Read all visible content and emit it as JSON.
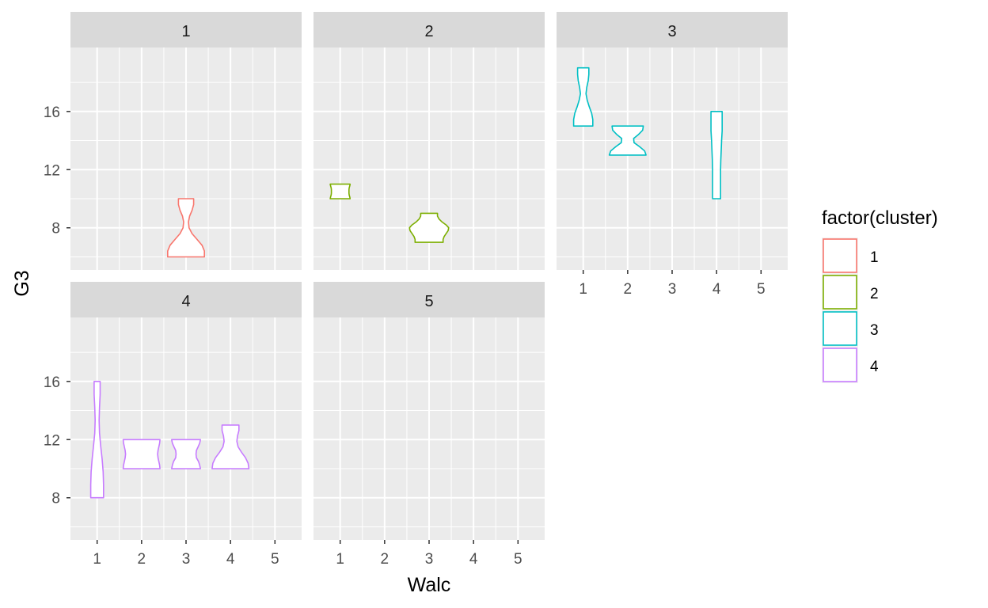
{
  "chart_data": {
    "type": "violin",
    "xlabel": "Walc",
    "ylabel": "G3",
    "x_ticks": [
      "1",
      "2",
      "3",
      "4",
      "5"
    ],
    "y_ticks": [
      "8",
      "12",
      "16"
    ],
    "xlim": [
      0.4,
      5.6
    ],
    "ylim": [
      5.1,
      20.4
    ],
    "grid": true,
    "legend": {
      "title": "factor(cluster)",
      "position": "right",
      "entries": [
        {
          "label": "1",
          "color": "#F8766D"
        },
        {
          "label": "2",
          "color": "#7CAE00"
        },
        {
          "label": "3",
          "color": "#00BFC4"
        },
        {
          "label": "4",
          "color": "#C77CFF"
        }
      ]
    },
    "panels": [
      {
        "label": "1",
        "violins": [
          {
            "x": 3,
            "ymin": 6,
            "ymax": 10,
            "widths": [
              0.92,
              0.92,
              0.8,
              0.55,
              0.3,
              0.15,
              0.12,
              0.18,
              0.3,
              0.38,
              0.38
            ]
          }
        ]
      },
      {
        "label": "2",
        "violins": [
          {
            "x": 1,
            "ymin": 10,
            "ymax": 11,
            "widths": [
              0.5,
              0.48,
              0.45,
              0.44,
              0.44,
              0.44,
              0.45,
              0.48,
              0.5
            ]
          },
          {
            "x": 3,
            "ymin": 7,
            "ymax": 9,
            "widths": [
              0.7,
              0.7,
              0.75,
              0.85,
              0.95,
              0.98,
              0.85,
              0.65,
              0.5,
              0.42,
              0.42
            ]
          }
        ]
      },
      {
        "label": "3",
        "violins": [
          {
            "x": 1,
            "ymin": 15,
            "ymax": 19,
            "widths": [
              0.48,
              0.48,
              0.42,
              0.3,
              0.2,
              0.14,
              0.18,
              0.25,
              0.28,
              0.28
            ]
          },
          {
            "x": 2,
            "ymin": 13,
            "ymax": 15,
            "widths": [
              0.92,
              0.85,
              0.6,
              0.32,
              0.3,
              0.55,
              0.75,
              0.78
            ]
          },
          {
            "x": 4,
            "ymin": 10,
            "ymax": 16,
            "widths": [
              0.2,
              0.2,
              0.2,
              0.2,
              0.21,
              0.23,
              0.25,
              0.28,
              0.28,
              0.28
            ]
          }
        ]
      },
      {
        "label": "4",
        "violins": [
          {
            "x": 1,
            "ymin": 8,
            "ymax": 16,
            "widths": [
              0.32,
              0.32,
              0.3,
              0.25,
              0.18,
              0.12,
              0.1,
              0.12,
              0.15,
              0.15
            ]
          },
          {
            "x": 2,
            "ymin": 10,
            "ymax": 12,
            "widths": [
              0.92,
              0.9,
              0.86,
              0.82,
              0.8,
              0.82,
              0.86,
              0.9,
              0.92
            ]
          },
          {
            "x": 3,
            "ymin": 10,
            "ymax": 12,
            "widths": [
              0.72,
              0.68,
              0.62,
              0.52,
              0.5,
              0.52,
              0.6,
              0.68,
              0.72
            ]
          },
          {
            "x": 4,
            "ymin": 10,
            "ymax": 13,
            "widths": [
              0.92,
              0.88,
              0.75,
              0.55,
              0.38,
              0.32,
              0.35,
              0.42,
              0.42
            ]
          }
        ]
      },
      {
        "label": "5",
        "violins": []
      }
    ]
  }
}
